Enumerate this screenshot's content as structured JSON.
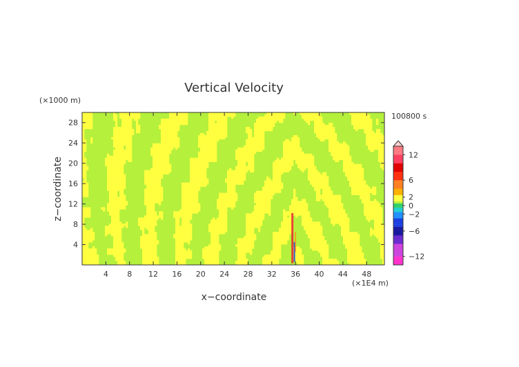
{
  "chart_data": {
    "type": "heatmap",
    "title": "Vertical Velocity",
    "xlabel": "x−coordinate",
    "ylabel": "z−coordinate",
    "x_unit": "(×1E4 m)",
    "y_unit": "(×1000 m)",
    "time_label": "100800 s",
    "xlim": [
      0,
      51
    ],
    "ylim": [
      0,
      30
    ],
    "x_ticks": [
      4,
      8,
      12,
      16,
      20,
      24,
      28,
      32,
      36,
      40,
      44,
      48
    ],
    "y_ticks": [
      4,
      8,
      12,
      16,
      20,
      24,
      28
    ],
    "colorbar": {
      "range": [
        -14,
        14
      ],
      "labels": [
        "12",
        "6",
        "2",
        "0",
        "−2",
        "−6",
        "−12"
      ],
      "label_values": [
        12,
        6,
        2,
        0,
        -2,
        -6,
        -12
      ],
      "extend_max": true
    },
    "field_description": "mostly near-zero values (green/yellow bands) with a narrow strong updraft/downdraft column near x=36",
    "colors": {
      "background_zero": "#b4f03c",
      "positive_small": "#ffff40",
      "plume_red": "#e63232",
      "plume_blue": "#2860d0"
    }
  }
}
